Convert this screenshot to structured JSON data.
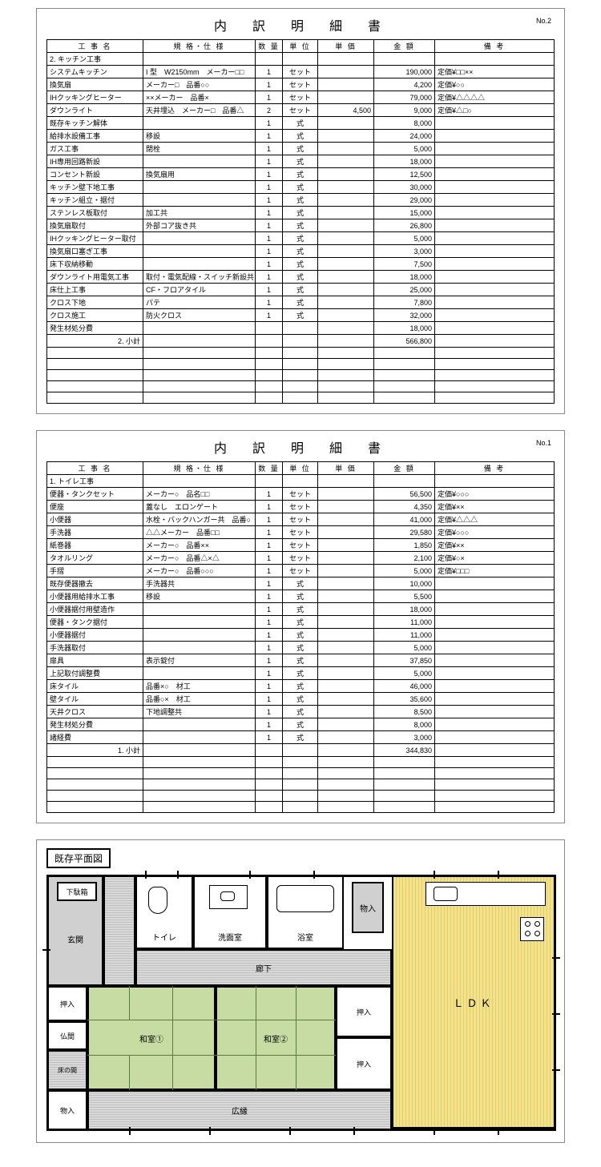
{
  "doc_title": "内　訳　明　細　書",
  "page_no_1": "No.1",
  "page_no_2": "No.2",
  "columns": [
    "工 事 名",
    "規 格・仕 様",
    "数 量",
    "単 位",
    "単 価",
    "金 額",
    "備 考"
  ],
  "subtotal_label_1": "1. 小計",
  "subtotal_label_2": "2. 小計",
  "section_1": "1. トイレ工事",
  "section_2": "2. キッチン工事",
  "table2": {
    "rows": [
      {
        "name": "システムキッチン",
        "spec": "I 型　W2150mm　メーカー□□",
        "qty": "1",
        "unit": "セット",
        "price": "",
        "amount": "190,000",
        "note": "定価¥□□××"
      },
      {
        "name": "換気扇",
        "spec": "メーカー□　品番○○",
        "qty": "1",
        "unit": "セット",
        "price": "",
        "amount": "4,200",
        "note": "定価¥○○"
      },
      {
        "name": "IHクッキングヒーター",
        "spec": "××メーカー　品番×",
        "qty": "1",
        "unit": "セット",
        "price": "",
        "amount": "79,000",
        "note": "定価¥△△△△"
      },
      {
        "name": "ダウンライト",
        "spec": "天井埋込　メーカー□　品番△",
        "qty": "2",
        "unit": "セット",
        "price": "4,500",
        "amount": "9,000",
        "note": "定価¥△□○"
      },
      {
        "name": "既存キッチン解体",
        "spec": "",
        "qty": "1",
        "unit": "式",
        "price": "",
        "amount": "8,000",
        "note": ""
      },
      {
        "name": "給排水設備工事",
        "spec": "移設",
        "qty": "1",
        "unit": "式",
        "price": "",
        "amount": "24,000",
        "note": ""
      },
      {
        "name": "ガス工事",
        "spec": "閉栓",
        "qty": "1",
        "unit": "式",
        "price": "",
        "amount": "5,000",
        "note": ""
      },
      {
        "name": "IH専用回路新設",
        "spec": "",
        "qty": "1",
        "unit": "式",
        "price": "",
        "amount": "18,000",
        "note": ""
      },
      {
        "name": "コンセント新設",
        "spec": "換気扇用",
        "qty": "1",
        "unit": "式",
        "price": "",
        "amount": "12,500",
        "note": ""
      },
      {
        "name": "キッチン壁下地工事",
        "spec": "",
        "qty": "1",
        "unit": "式",
        "price": "",
        "amount": "30,000",
        "note": ""
      },
      {
        "name": "キッチン組立・据付",
        "spec": "",
        "qty": "1",
        "unit": "式",
        "price": "",
        "amount": "29,000",
        "note": ""
      },
      {
        "name": "ステンレス板取付",
        "spec": "加工共",
        "qty": "1",
        "unit": "式",
        "price": "",
        "amount": "15,000",
        "note": ""
      },
      {
        "name": "換気扇取付",
        "spec": "外部コア抜き共",
        "qty": "1",
        "unit": "式",
        "price": "",
        "amount": "26,800",
        "note": ""
      },
      {
        "name": "IHクッキングヒーター取付",
        "spec": "",
        "qty": "1",
        "unit": "式",
        "price": "",
        "amount": "5,000",
        "note": ""
      },
      {
        "name": "換気扇口塞ぎ工事",
        "spec": "",
        "qty": "1",
        "unit": "式",
        "price": "",
        "amount": "3,000",
        "note": ""
      },
      {
        "name": "床下収納移動",
        "spec": "",
        "qty": "1",
        "unit": "式",
        "price": "",
        "amount": "7,500",
        "note": ""
      },
      {
        "name": "ダウンライト用電気工事",
        "spec": "取付・電気配線・スイッチ新設共",
        "qty": "1",
        "unit": "式",
        "price": "",
        "amount": "18,000",
        "note": ""
      },
      {
        "name": "床仕上工事",
        "spec": "CF・フロアタイル",
        "qty": "1",
        "unit": "式",
        "price": "",
        "amount": "25,000",
        "note": ""
      },
      {
        "name": "クロス下地",
        "spec": "パテ",
        "qty": "1",
        "unit": "式",
        "price": "",
        "amount": "7,800",
        "note": ""
      },
      {
        "name": "クロス施工",
        "spec": "防火クロス",
        "qty": "1",
        "unit": "式",
        "price": "",
        "amount": "32,000",
        "note": ""
      },
      {
        "name": "発生材処分費",
        "spec": "",
        "qty": "",
        "unit": "",
        "price": "",
        "amount": "18,000",
        "note": ""
      }
    ],
    "subtotal": "566,800",
    "blanks": 5
  },
  "table1": {
    "rows": [
      {
        "name": "便器・タンクセット",
        "spec": "メーカー○　品名□□",
        "qty": "1",
        "unit": "セット",
        "price": "",
        "amount": "56,500",
        "note": "定価¥○○○"
      },
      {
        "name": "便座",
        "spec": "蓋なし　エロンゲート",
        "qty": "1",
        "unit": "セット",
        "price": "",
        "amount": "4,350",
        "note": "定価¥××"
      },
      {
        "name": "小便器",
        "spec": "水栓・バックハンガー共　品番○",
        "qty": "1",
        "unit": "セット",
        "price": "",
        "amount": "41,000",
        "note": "定価¥△△△"
      },
      {
        "name": "手洗器",
        "spec": "△△メーカー　品番□□",
        "qty": "1",
        "unit": "セット",
        "price": "",
        "amount": "29,580",
        "note": "定価¥○○○"
      },
      {
        "name": "紙巻器",
        "spec": "メーカー○　品番××",
        "qty": "1",
        "unit": "セット",
        "price": "",
        "amount": "1,850",
        "note": "定価¥××"
      },
      {
        "name": "タオルリング",
        "spec": "メーカー○　品番△×△",
        "qty": "1",
        "unit": "セット",
        "price": "",
        "amount": "2,100",
        "note": "定価¥○×"
      },
      {
        "name": "手摺",
        "spec": "メーカー○　品番○○○",
        "qty": "1",
        "unit": "セット",
        "price": "",
        "amount": "5,000",
        "note": "定価¥□□□"
      },
      {
        "name": "既存便器撤去",
        "spec": "手洗器共",
        "qty": "1",
        "unit": "式",
        "price": "",
        "amount": "10,000",
        "note": ""
      },
      {
        "name": "小便器用給排水工事",
        "spec": "移設",
        "qty": "1",
        "unit": "式",
        "price": "",
        "amount": "5,500",
        "note": ""
      },
      {
        "name": "小便器据付用壁造作",
        "spec": "",
        "qty": "1",
        "unit": "式",
        "price": "",
        "amount": "18,000",
        "note": ""
      },
      {
        "name": "便器・タンク据付",
        "spec": "",
        "qty": "1",
        "unit": "式",
        "price": "",
        "amount": "11,000",
        "note": ""
      },
      {
        "name": "小便器据付",
        "spec": "",
        "qty": "1",
        "unit": "式",
        "price": "",
        "amount": "11,000",
        "note": ""
      },
      {
        "name": "手洗器取付",
        "spec": "",
        "qty": "1",
        "unit": "式",
        "price": "",
        "amount": "5,000",
        "note": ""
      },
      {
        "name": "扉具",
        "spec": "表示錠付",
        "qty": "1",
        "unit": "式",
        "price": "",
        "amount": "37,850",
        "note": ""
      },
      {
        "name": "上記取付調整費",
        "spec": "",
        "qty": "1",
        "unit": "式",
        "price": "",
        "amount": "5,000",
        "note": ""
      },
      {
        "name": "床タイル",
        "spec": "品番×○　材工",
        "qty": "1",
        "unit": "式",
        "price": "",
        "amount": "46,000",
        "note": ""
      },
      {
        "name": "壁タイル",
        "spec": "品番○×　材工",
        "qty": "1",
        "unit": "式",
        "price": "",
        "amount": "35,600",
        "note": ""
      },
      {
        "name": "天井クロス",
        "spec": "下地調整共",
        "qty": "1",
        "unit": "式",
        "price": "",
        "amount": "8,500",
        "note": ""
      },
      {
        "name": "発生材処分費",
        "spec": "",
        "qty": "1",
        "unit": "式",
        "price": "",
        "amount": "8,000",
        "note": ""
      },
      {
        "name": "諸経費",
        "spec": "",
        "qty": "1",
        "unit": "式",
        "price": "",
        "amount": "3,000",
        "note": ""
      }
    ],
    "subtotal": "344,830",
    "blanks": 5
  },
  "floorplan": {
    "title": "既存平面図",
    "rooms": {
      "genkan": "玄関",
      "getabako": "下駄箱",
      "toilet": "トイレ",
      "senmen": "洗面室",
      "yokushitsu": "浴室",
      "monoire": "物入",
      "ldk": "ＬＤＫ",
      "rouka": "廊下",
      "oshiire1": "押入",
      "oshiire2": "押入",
      "oshiire3": "押入",
      "butsuma": "仏間",
      "tokonoma": "床の間",
      "monoire2": "物入",
      "washitsu1": "和室①",
      "washitsu2": "和室②",
      "hiroen": "広縁"
    }
  }
}
